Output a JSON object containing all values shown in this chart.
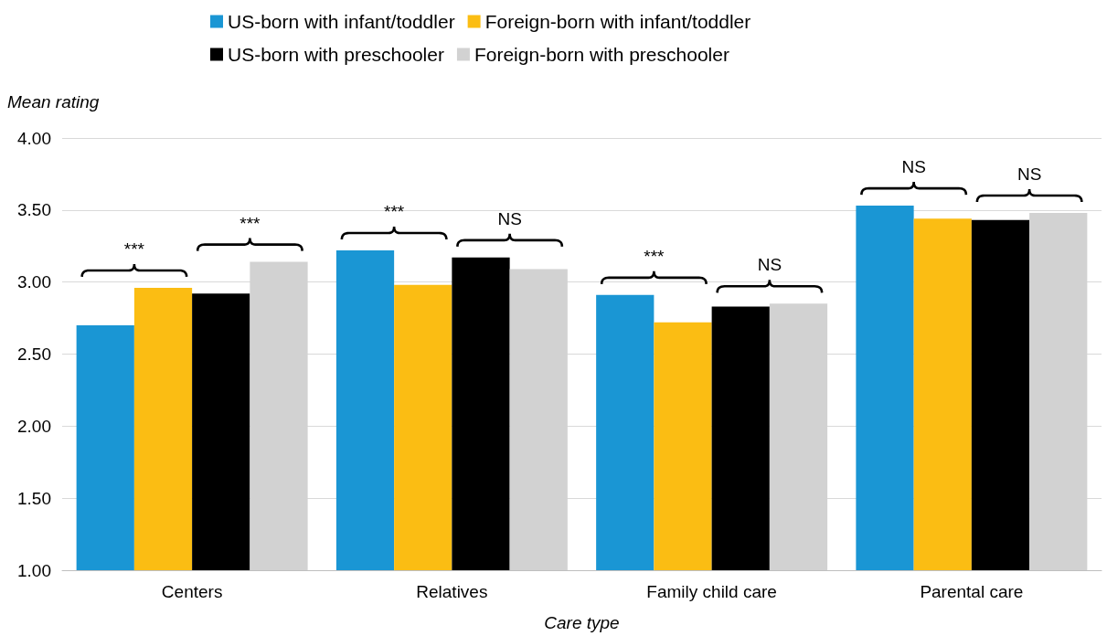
{
  "chart_data": {
    "type": "bar",
    "ylabel": "Mean rating",
    "xlabel": "Care type",
    "categories": [
      "Centers",
      "Relatives",
      "Family child care",
      "Parental care"
    ],
    "series": [
      {
        "name": "US-born with infant/toddler",
        "color": "#1a96d4",
        "values": [
          2.7,
          3.22,
          2.91,
          3.53
        ]
      },
      {
        "name": "Foreign-born with infant/toddler",
        "color": "#fbbd13",
        "values": [
          2.96,
          2.98,
          2.72,
          3.44
        ]
      },
      {
        "name": "US-born with preschooler",
        "color": "#000000",
        "values": [
          2.92,
          3.17,
          2.83,
          3.43
        ]
      },
      {
        "name": "Foreign-born with preschooler",
        "color": "#d2d2d2",
        "values": [
          3.14,
          3.09,
          2.85,
          3.48
        ]
      }
    ],
    "ylim": [
      1,
      4
    ],
    "yticks": [
      {
        "value": 1,
        "label": "1.00"
      },
      {
        "value": 1.5,
        "label": "1.50"
      },
      {
        "value": 2,
        "label": "2.00"
      },
      {
        "value": 2.5,
        "label": "2.50"
      },
      {
        "value": 3,
        "label": "3.00"
      },
      {
        "value": 3.5,
        "label": "3.50"
      },
      {
        "value": 4,
        "label": "4.00"
      }
    ],
    "grid": "y",
    "legend": "top",
    "annotations": [
      "***",
      "***",
      "***",
      "NS",
      "***",
      "NS",
      "NS",
      "NS"
    ]
  }
}
